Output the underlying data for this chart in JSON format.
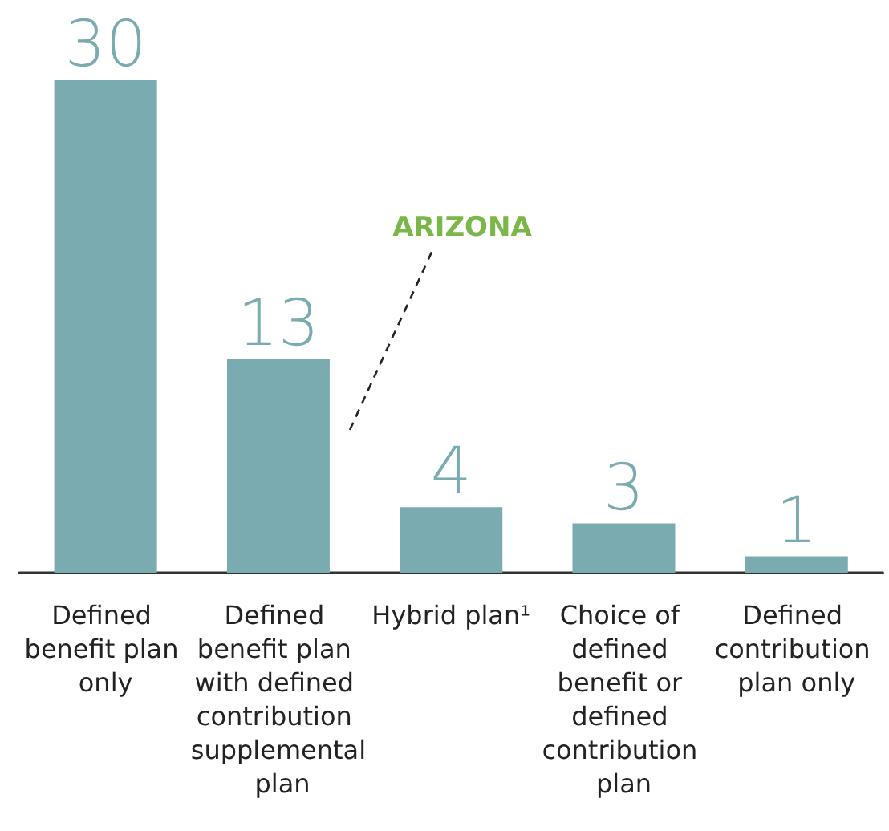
{
  "chart_data": {
    "type": "bar",
    "categories": [
      "Defined benefit plan only",
      "Defined benefit plan with defined contribution supplemental plan",
      "Hybrid plan¹",
      "Choice of defined benefit or defined contribution plan",
      "Defined contribution plan only"
    ],
    "values": [
      30,
      13,
      4,
      3,
      1
    ],
    "color": "#7aabb0",
    "data_labels": true,
    "annotations": [
      "ARIZONA"
    ]
  }
}
